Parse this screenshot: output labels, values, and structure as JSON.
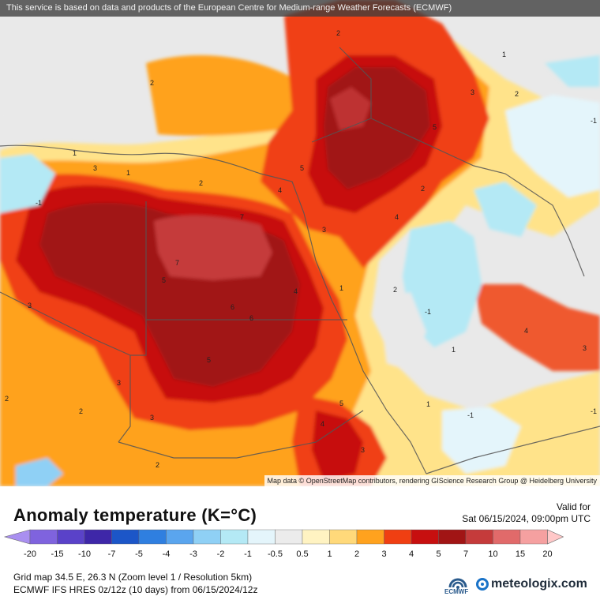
{
  "service_note": "This service is based on data and products of the European Centre for Medium-range Weather Forecasts (ECMWF)",
  "attribution": "Map data © OpenStreetMap contributors, rendering GIScience Research Group @ Heidelberg University",
  "title": "Anomaly temperature (K=°C)",
  "valid_for_label": "Valid for",
  "valid_time": "Sat 06/15/2024, 09:00pm UTC",
  "grid_info": "Grid map 34.5 E, 26.3 N (Zoom level 1 / Resolution 5km)",
  "model_info": "ECMWF IFS HRES 0z/12z (10 days) from 06/15/2024/12z",
  "logos": {
    "ecmwf": "ECMWF",
    "meteologix": "meteologix.com"
  },
  "legend": {
    "ticks": [
      "-20",
      "-15",
      "-10",
      "-7",
      "-5",
      "-4",
      "-3",
      "-2",
      "-1",
      "-0.5",
      "0.5",
      "1",
      "2",
      "3",
      "4",
      "5",
      "7",
      "10",
      "15",
      "20"
    ],
    "colors": [
      "#a98ff0",
      "#7f63de",
      "#5a42c9",
      "#3e27a8",
      "#1c56c8",
      "#2f7fe0",
      "#5aa5ee",
      "#8fd0f5",
      "#b4e9f5",
      "#e4f5fb",
      "#ececec",
      "#fff3c2",
      "#ffd97a",
      "#ffa21e",
      "#f03f12",
      "#c70f0f",
      "#a11515",
      "#c53b3b",
      "#e16a6a",
      "#f5a0a0",
      "#ffc8c8"
    ]
  },
  "contour_labels": [
    "2",
    "1",
    "-1",
    "3",
    "2",
    "4",
    "5",
    "7",
    "6",
    "5",
    "4",
    "3",
    "2",
    "1",
    "7",
    "5",
    "6",
    "5",
    "4",
    "3",
    "2",
    "3",
    "4",
    "5",
    "3",
    "2",
    "1",
    "-1",
    "2",
    "3",
    "1",
    "2",
    "3",
    "4",
    "-1",
    "1",
    "2",
    "3",
    "-1",
    "2",
    "1",
    "-1"
  ]
}
